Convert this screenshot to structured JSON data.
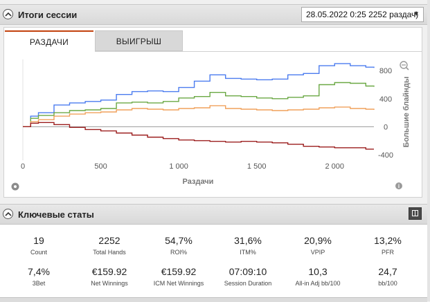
{
  "session_panel": {
    "title": "Итоги сессии",
    "session_select": "28.05.2022 0:25 2252 раздач)",
    "tabs": [
      "РАЗДАЧИ",
      "ВЫИГРЫШ"
    ],
    "active_tab": "РАЗДАЧИ"
  },
  "chart_data": {
    "type": "line",
    "xlabel": "Раздачи",
    "ylabel": "Большие блайнды",
    "x_ticks": [
      "0",
      "500",
      "1 000",
      "1 500",
      "2 000"
    ],
    "y_ticks": [
      "800",
      "400",
      "0",
      "-400"
    ],
    "xlim": [
      0,
      2252
    ],
    "ylim": [
      -480,
      960
    ],
    "grid": false,
    "series": [
      {
        "color": "#4a7bef",
        "x": [
          0,
          50,
          100,
          200,
          300,
          400,
          500,
          600,
          700,
          800,
          900,
          1000,
          1100,
          1200,
          1300,
          1400,
          1500,
          1600,
          1700,
          1800,
          1900,
          2000,
          2100,
          2200,
          2252
        ],
        "y": [
          0,
          150,
          200,
          310,
          340,
          360,
          380,
          460,
          500,
          510,
          500,
          560,
          650,
          740,
          690,
          680,
          670,
          680,
          740,
          760,
          870,
          900,
          870,
          850,
          840
        ]
      },
      {
        "color": "#6aa843",
        "x": [
          0,
          50,
          100,
          200,
          300,
          400,
          500,
          600,
          700,
          800,
          900,
          1000,
          1100,
          1200,
          1300,
          1400,
          1500,
          1600,
          1700,
          1800,
          1900,
          2000,
          2100,
          2200,
          2252
        ],
        "y": [
          0,
          120,
          160,
          200,
          230,
          240,
          260,
          340,
          350,
          340,
          360,
          410,
          430,
          490,
          440,
          430,
          410,
          400,
          420,
          440,
          600,
          630,
          620,
          580,
          570
        ]
      },
      {
        "color": "#f0a05a",
        "x": [
          0,
          50,
          100,
          200,
          300,
          400,
          500,
          600,
          700,
          800,
          900,
          1000,
          1100,
          1200,
          1300,
          1400,
          1500,
          1600,
          1700,
          1800,
          1900,
          2000,
          2100,
          2200,
          2252
        ],
        "y": [
          0,
          70,
          100,
          150,
          180,
          200,
          210,
          240,
          260,
          250,
          240,
          260,
          270,
          300,
          260,
          250,
          240,
          230,
          240,
          250,
          270,
          280,
          260,
          250,
          240
        ]
      },
      {
        "color": "#9b1c1c",
        "x": [
          0,
          50,
          100,
          200,
          300,
          400,
          500,
          600,
          700,
          800,
          900,
          1000,
          1100,
          1200,
          1300,
          1400,
          1500,
          1600,
          1700,
          1800,
          1900,
          2000,
          2100,
          2200,
          2252
        ],
        "y": [
          0,
          50,
          60,
          30,
          -10,
          -40,
          -60,
          -90,
          -120,
          -150,
          -170,
          -190,
          -200,
          -210,
          -220,
          -210,
          -220,
          -230,
          -250,
          -280,
          -290,
          -300,
          -300,
          -320,
          -320
        ]
      }
    ]
  },
  "key_stats": {
    "title": "Ключевые статы",
    "items": [
      {
        "value": "19",
        "label": "Count"
      },
      {
        "value": "2252",
        "label": "Total Hands"
      },
      {
        "value": "54,7%",
        "label": "ROI%"
      },
      {
        "value": "31,6%",
        "label": "ITM%"
      },
      {
        "value": "20,9%",
        "label": "VPIP"
      },
      {
        "value": "13,2%",
        "label": "PFR"
      },
      {
        "value": "7,4%",
        "label": "3Bet"
      },
      {
        "value": "€159.92",
        "label": "Net Winnings"
      },
      {
        "value": "€159.92",
        "label": "ICM Net Winnings"
      },
      {
        "value": "07:09:10",
        "label": "Session Duration"
      },
      {
        "value": "10,3",
        "label": "All-in Adj bb/100"
      },
      {
        "value": "24,7",
        "label": "bb/100"
      }
    ]
  }
}
